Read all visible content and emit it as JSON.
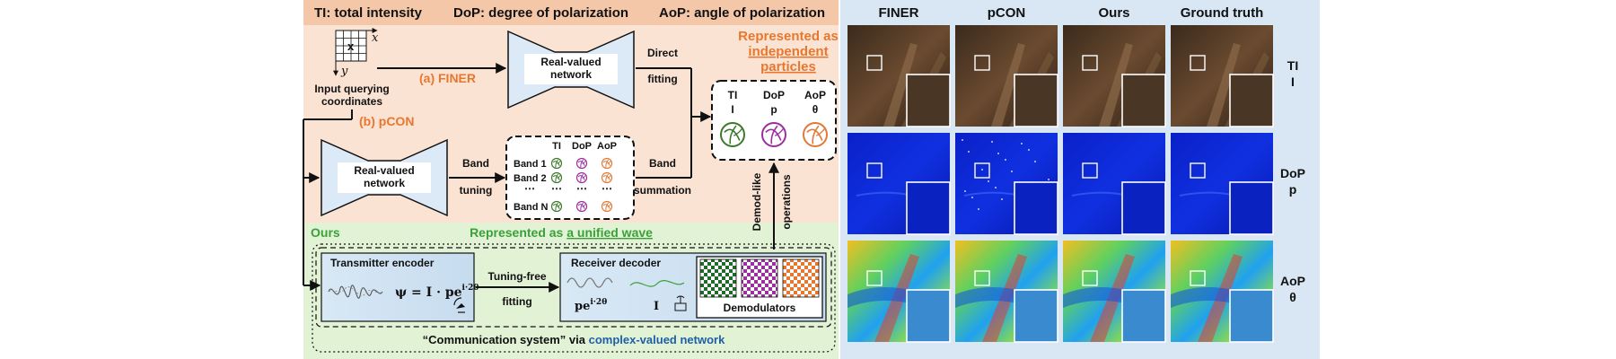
{
  "legend": {
    "ti": "TI: total intensity",
    "dop": "DoP: degree of polarization",
    "aop": "AoP: angle of polarization"
  },
  "grid_labels": {
    "x_axis": "x",
    "y_axis": "y",
    "marker": "x"
  },
  "input_label": [
    "Input querying",
    "coordinates"
  ],
  "finer": {
    "label": "(a) FINER",
    "network": [
      "Real-valued",
      "network"
    ],
    "direct_fitting": [
      "Direct",
      "fitting"
    ]
  },
  "particles": {
    "title": [
      "Represented as",
      "independent",
      "particles"
    ],
    "items": [
      {
        "name": "TI",
        "symbol": "I",
        "color": "#3b7a2c"
      },
      {
        "name": "DoP",
        "symbol": "p",
        "color": "#9b2fa0"
      },
      {
        "name": "AoP",
        "symbol": "θ",
        "color": "#e07a3a"
      }
    ]
  },
  "pcon": {
    "label": "(b) pCON",
    "network": [
      "Real-valued",
      "network"
    ],
    "band_tuning": [
      "Band",
      "tuning"
    ],
    "band_summation": [
      "Band",
      "summation"
    ],
    "headers": [
      "TI",
      "DoP",
      "AoP"
    ],
    "bands": [
      "Band 1",
      "Band 2",
      "Band N"
    ],
    "ellipsis": "⋯"
  },
  "demod_label": [
    "Demod-like",
    "operations"
  ],
  "ours": {
    "label": "Ours",
    "wave_prefix": "Represented as",
    "wave_link": "a unified wave",
    "transmitter": "Transmitter encoder",
    "formula": "ψ = I · pe",
    "formula_sup": "i·2θ",
    "tuning_free": [
      "Tuning-free",
      "fitting"
    ],
    "receiver": "Receiver decoder",
    "recv_p": "pe",
    "recv_p_sup": "i·2θ",
    "recv_I": "I",
    "demodulators": "Demodulators",
    "caption_prefix": "“Communication system” via",
    "caption_link": "complex-valued network"
  },
  "results": {
    "columns": [
      "FINER",
      "pCON",
      "Ours",
      "Ground truth"
    ],
    "rows": [
      {
        "name": "TI",
        "symbol": "I"
      },
      {
        "name": "DoP",
        "symbol": "p"
      },
      {
        "name": "AoP",
        "symbol": "θ"
      }
    ]
  },
  "colors": {
    "header_band": "#f5c7a9",
    "panel_salmon": "#fbe3d4",
    "panel_green": "#e2f2d4",
    "right_panel": "#d9e7f5",
    "accent_orange": "#e8772e",
    "accent_green": "#3aa13a",
    "accent_blue": "#1e5fa8"
  }
}
